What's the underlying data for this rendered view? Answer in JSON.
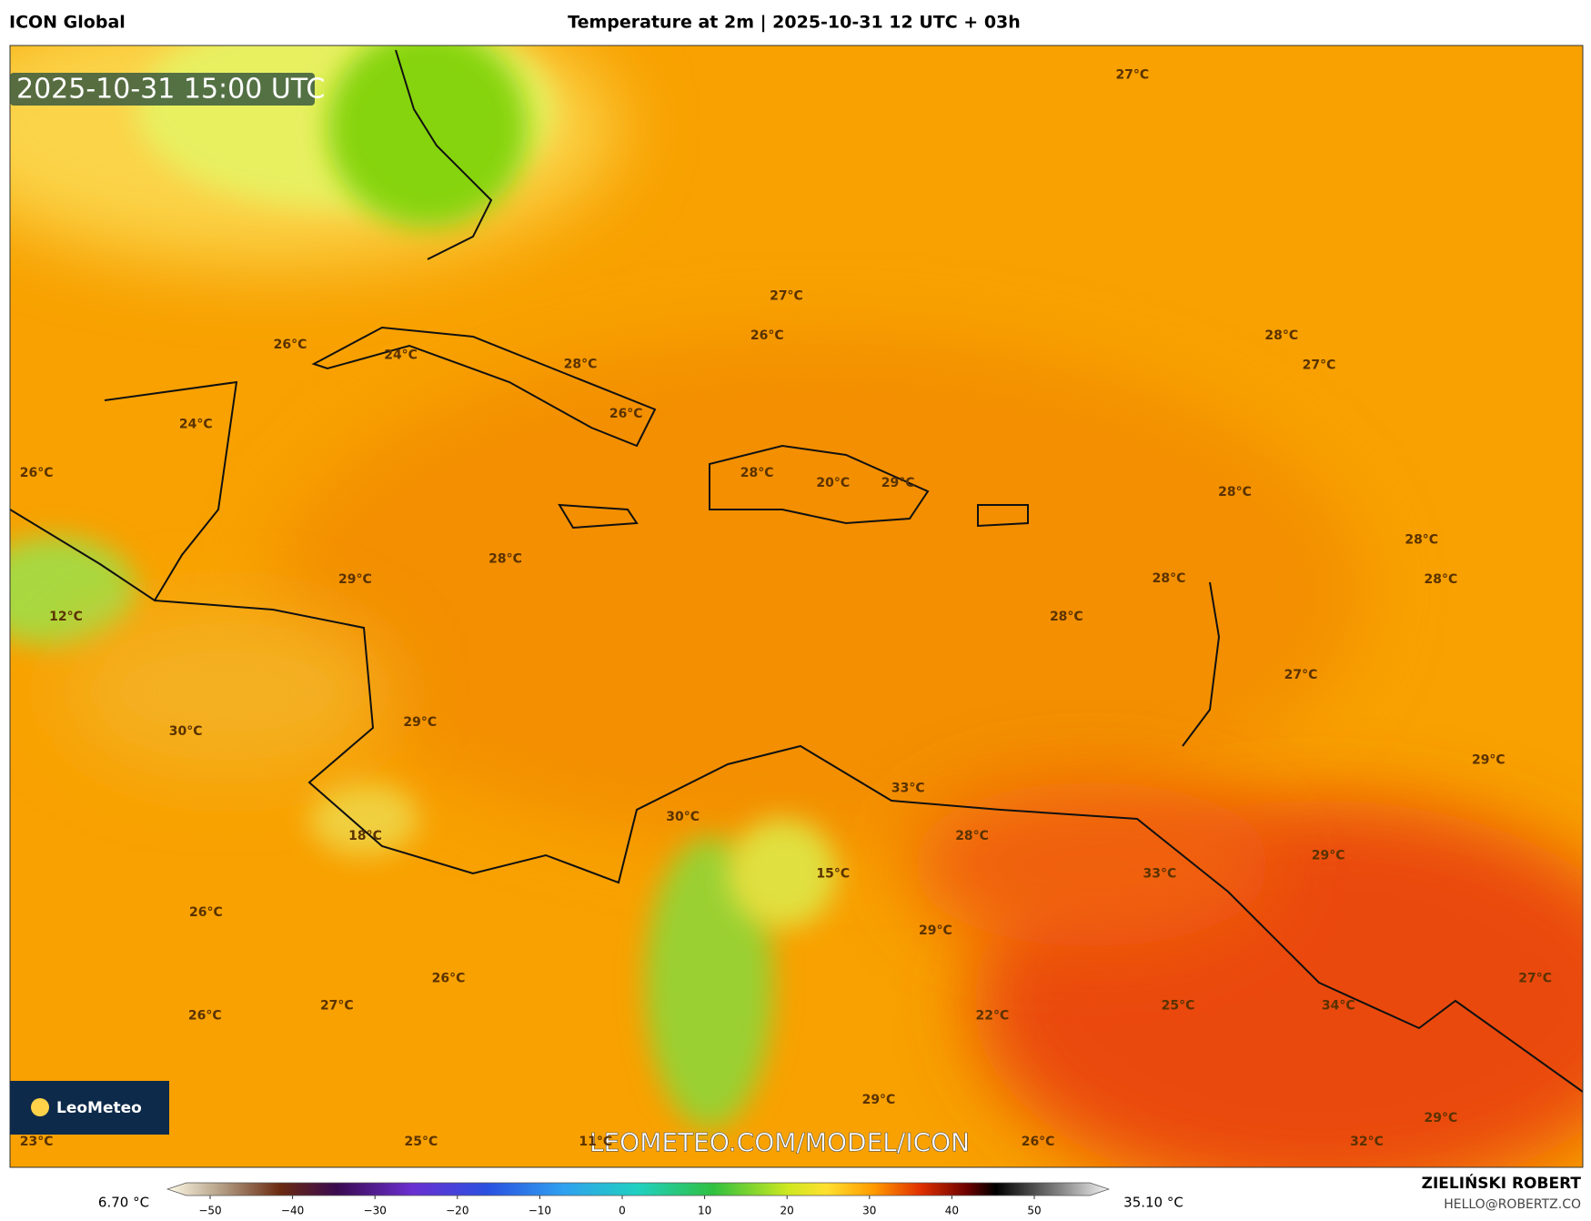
{
  "header": {
    "model": "ICON Global",
    "title": "Temperature at 2m | 2025-10-31 12 UTC + 03h"
  },
  "map": {
    "timestamp": "2025-10-31 15:00 UTC",
    "logo": "LeoMeteo",
    "watermark": "LEOMETEO.COM/MODEL/ICON",
    "labels": [
      "27°C",
      "27°C",
      "26°C",
      "28°C",
      "27°C",
      "26°C",
      "24°C",
      "28°C",
      "26°C",
      "24°C",
      "26°C",
      "28°C",
      "20°C",
      "29°C",
      "28°C",
      "28°C",
      "28°C",
      "29°C",
      "28°C",
      "28°C",
      "12°C",
      "28°C",
      "27°C",
      "30°C",
      "29°C",
      "29°C",
      "33°C",
      "30°C",
      "18°C",
      "28°C",
      "29°C",
      "15°C",
      "33°C",
      "26°C",
      "29°C",
      "26°C",
      "27°C",
      "26°C",
      "27°C",
      "22°C",
      "25°C",
      "34°C",
      "29°C",
      "29°C",
      "23°C",
      "25°C",
      "11°C",
      "26°C",
      "32°C"
    ]
  },
  "colorbar": {
    "min": "6.70 °C",
    "max": "35.10 °C",
    "ticks": [
      "−50",
      "−40",
      "−30",
      "−20",
      "−10",
      "0",
      "10",
      "20",
      "30",
      "40",
      "50"
    ]
  },
  "footer": {
    "author": "ZIELIŃSKI ROBERT",
    "email": "HELLO@ROBERTZ.CO"
  }
}
